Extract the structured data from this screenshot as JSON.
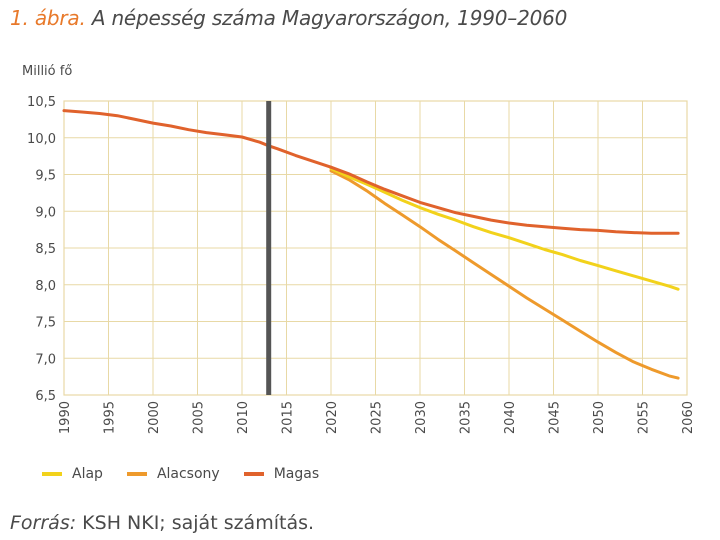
{
  "title": {
    "number": "1. ábra.",
    "text": "A népesség száma Magyarországon, 1990–2060"
  },
  "source": {
    "label": "Forrás:",
    "text": "KSH NKI; saját számítás."
  },
  "colors": {
    "alap": "#f2d21b",
    "alacsony": "#ee9a2c",
    "magas": "#e0622c",
    "divider": "#555555",
    "grid": "#e8d9a6",
    "frame": "#e8d9a6"
  },
  "chart_data": {
    "type": "line",
    "ylabel": "Millió fő",
    "xlim": [
      1990,
      2060
    ],
    "ylim": [
      6.5,
      10.5
    ],
    "x_ticks": [
      "1990",
      "1995",
      "2000",
      "2005",
      "2010",
      "2015",
      "2020",
      "2025",
      "2030",
      "2035",
      "2040",
      "2045",
      "2050",
      "2055",
      "2060"
    ],
    "y_ticks": [
      "10,5",
      "10,0",
      "9,5",
      "9,0",
      "8,5",
      "8,0",
      "7,5",
      "7,0",
      "6,5"
    ],
    "y_tick_values": [
      10.5,
      10.0,
      9.5,
      9.0,
      8.5,
      8.0,
      7.5,
      7.0,
      6.5
    ],
    "vertical_marker_year": 2013,
    "grid": true,
    "legend_position": "bottom-left",
    "x_common": [
      1990,
      1992,
      1994,
      1996,
      1998,
      2000,
      2002,
      2004,
      2006,
      2008,
      2010,
      2012,
      2013,
      2014,
      2016,
      2018,
      2020
    ],
    "y_common": [
      10.37,
      10.35,
      10.33,
      10.3,
      10.25,
      10.2,
      10.16,
      10.11,
      10.07,
      10.04,
      10.01,
      9.94,
      9.89,
      9.85,
      9.76,
      9.68,
      9.6
    ],
    "series": [
      {
        "name": "Alap",
        "color": "#f2d21b",
        "x": [
          2020,
          2022,
          2024,
          2026,
          2028,
          2030,
          2032,
          2034,
          2036,
          2038,
          2040,
          2042,
          2044,
          2046,
          2048,
          2050,
          2052,
          2054,
          2056,
          2058,
          2059
        ],
        "values": [
          9.58,
          9.47,
          9.37,
          9.26,
          9.15,
          9.05,
          8.96,
          8.88,
          8.79,
          8.71,
          8.64,
          8.56,
          8.48,
          8.41,
          8.33,
          8.26,
          8.19,
          8.12,
          8.05,
          7.98,
          7.94
        ]
      },
      {
        "name": "Alacsony",
        "color": "#ee9a2c",
        "x": [
          2020,
          2022,
          2024,
          2026,
          2028,
          2030,
          2032,
          2034,
          2036,
          2038,
          2040,
          2042,
          2044,
          2046,
          2048,
          2050,
          2052,
          2054,
          2056,
          2058,
          2059
        ],
        "values": [
          9.55,
          9.43,
          9.28,
          9.11,
          8.95,
          8.79,
          8.62,
          8.46,
          8.3,
          8.14,
          7.98,
          7.82,
          7.67,
          7.52,
          7.37,
          7.22,
          7.08,
          6.95,
          6.85,
          6.76,
          6.73
        ]
      },
      {
        "name": "Magas",
        "color": "#e0622c",
        "x": [
          2020,
          2022,
          2024,
          2026,
          2028,
          2030,
          2032,
          2034,
          2036,
          2038,
          2040,
          2042,
          2044,
          2046,
          2048,
          2050,
          2052,
          2054,
          2056,
          2058,
          2059
        ],
        "values": [
          9.6,
          9.51,
          9.4,
          9.3,
          9.21,
          9.12,
          9.05,
          8.98,
          8.93,
          8.88,
          8.84,
          8.81,
          8.79,
          8.77,
          8.75,
          8.74,
          8.72,
          8.71,
          8.7,
          8.7,
          8.7
        ]
      }
    ]
  }
}
